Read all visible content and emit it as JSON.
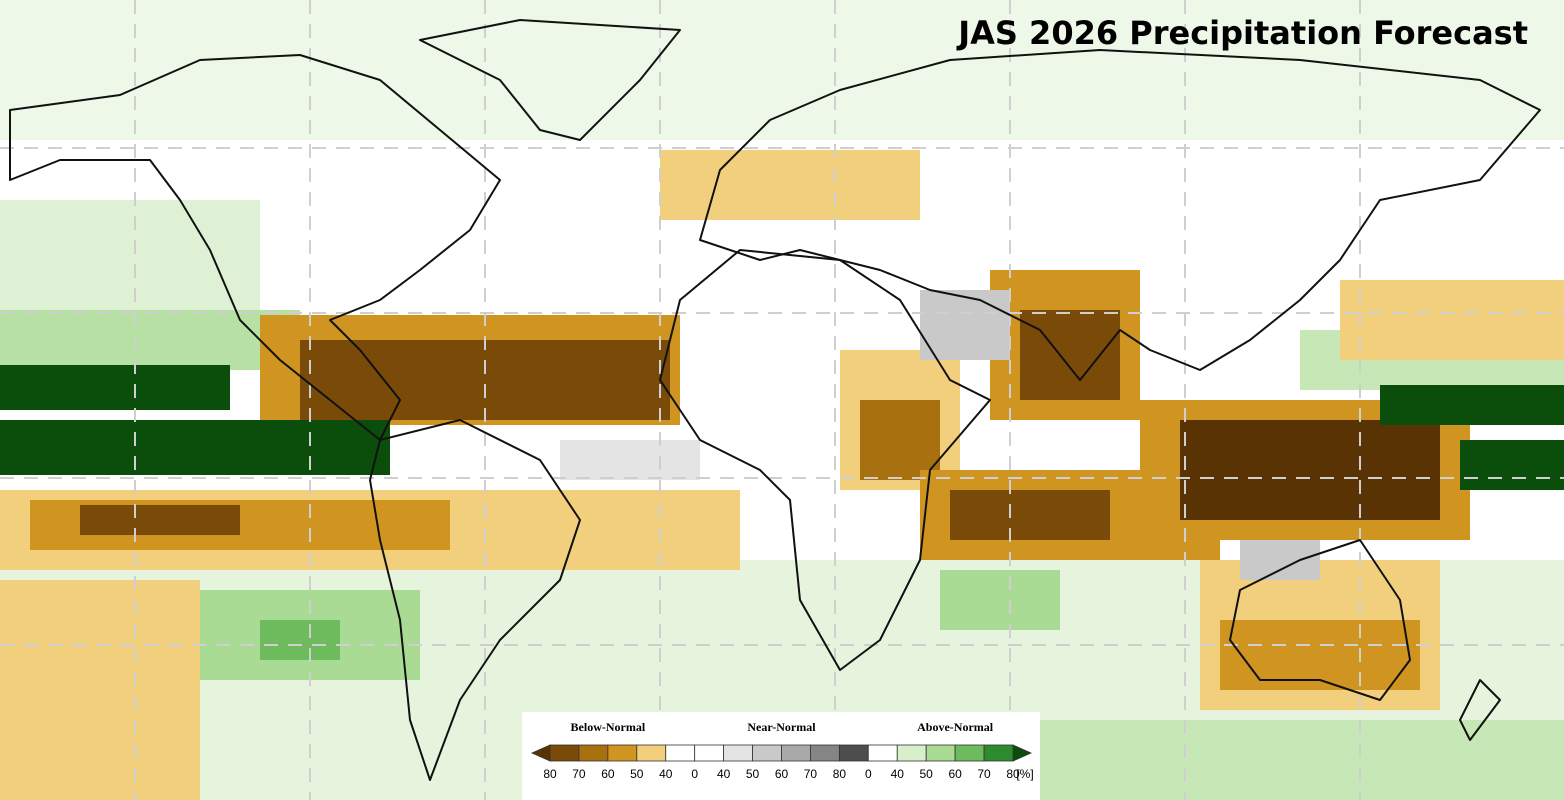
{
  "title": "JAS 2026 Precipitation Forecast",
  "legend": {
    "headings": [
      "Below-Normal",
      "Near-Normal",
      "Above-Normal"
    ],
    "ticks": [
      "80",
      "70",
      "60",
      "50",
      "40",
      "0",
      "40",
      "50",
      "60",
      "70",
      "80",
      "0",
      "40",
      "50",
      "60",
      "70",
      "80"
    ],
    "unit": "[%]",
    "colors": [
      "#5a3305",
      "#7a4a08",
      "#a8700e",
      "#cf9520",
      "#f2cf7c",
      "#ffffff",
      "#ffffff",
      "#e4e4e4",
      "#c9c9c9",
      "#a9a9a9",
      "#858585",
      "#4d4d4d",
      "#ffffff",
      "#d8efcc",
      "#a9db95",
      "#6dbb5d",
      "#2e8a2e",
      "#0b4d0b"
    ]
  }
}
